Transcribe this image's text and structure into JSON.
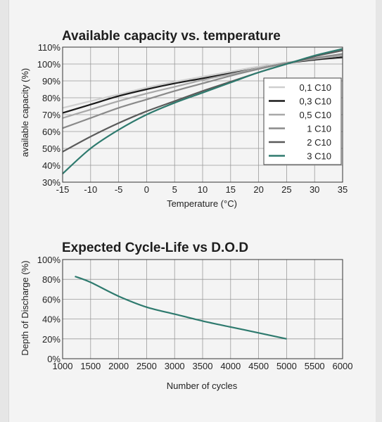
{
  "chart_data": [
    {
      "type": "line",
      "title": "Available capacity vs. temperature",
      "xlabel": "Temperature (°C)",
      "ylabel": "available capacity (%)",
      "x_ticks": [
        "-15",
        "-10",
        "-5",
        "0",
        "5",
        "10",
        "15",
        "20",
        "25",
        "30",
        "35"
      ],
      "y_ticks": [
        "30%",
        "40%",
        "50%",
        "60%",
        "70%",
        "80%",
        "90%",
        "100%",
        "110%"
      ],
      "xlim": [
        -15,
        35
      ],
      "ylim": [
        30,
        110
      ],
      "grid": true,
      "legend": "right",
      "x": [
        -15,
        -10,
        -5,
        0,
        5,
        10,
        15,
        20,
        25,
        30,
        35
      ],
      "series": [
        {
          "name": "0,1 C10",
          "color": "#cfcfcf",
          "values": [
            74,
            78,
            82,
            86,
            89.5,
            92.5,
            95.5,
            98.5,
            101,
            102.5,
            103.5
          ]
        },
        {
          "name": "0,3 C10",
          "color": "#1a1a1a",
          "values": [
            71,
            76,
            81,
            85,
            88.5,
            91.5,
            94.5,
            97.5,
            100.5,
            102.5,
            104
          ]
        },
        {
          "name": "0,5 C10",
          "color": "#a8a8a8",
          "values": [
            68,
            73,
            78,
            82.5,
            86.5,
            90.5,
            94,
            97.5,
            100.5,
            103,
            105
          ]
        },
        {
          "name": "1 C10",
          "color": "#8a8a8a",
          "values": [
            62,
            68,
            74,
            79,
            84,
            88.5,
            93,
            97,
            100.5,
            103.5,
            106
          ]
        },
        {
          "name": "2 C10",
          "color": "#5a5a5a",
          "values": [
            48,
            57,
            65,
            72,
            78,
            84,
            89.5,
            95,
            100,
            104.5,
            108
          ]
        },
        {
          "name": "3 C10",
          "color": "#2e7a6e",
          "values": [
            35,
            50,
            61,
            70,
            77,
            83,
            89,
            95,
            100,
            105,
            109
          ]
        }
      ]
    },
    {
      "type": "line",
      "title": "Expected Cycle-Life vs D.O.D",
      "xlabel": "Number of cycles",
      "ylabel": "Depth of Discharge (%)",
      "x_ticks": [
        "1000",
        "1500",
        "2000",
        "2500",
        "3000",
        "3500",
        "4000",
        "4500",
        "5000",
        "5500",
        "6000"
      ],
      "y_ticks": [
        "0%",
        "20%",
        "40%",
        "60%",
        "80%",
        "100%"
      ],
      "xlim": [
        1000,
        6000
      ],
      "ylim": [
        0,
        100
      ],
      "grid": true,
      "series": [
        {
          "color": "#2e7a6e",
          "x": [
            1220,
            1500,
            2000,
            2500,
            3000,
            3500,
            4000,
            4500,
            5000
          ],
          "values": [
            83,
            77,
            63,
            52,
            45,
            38,
            32,
            26,
            20
          ]
        }
      ]
    }
  ]
}
